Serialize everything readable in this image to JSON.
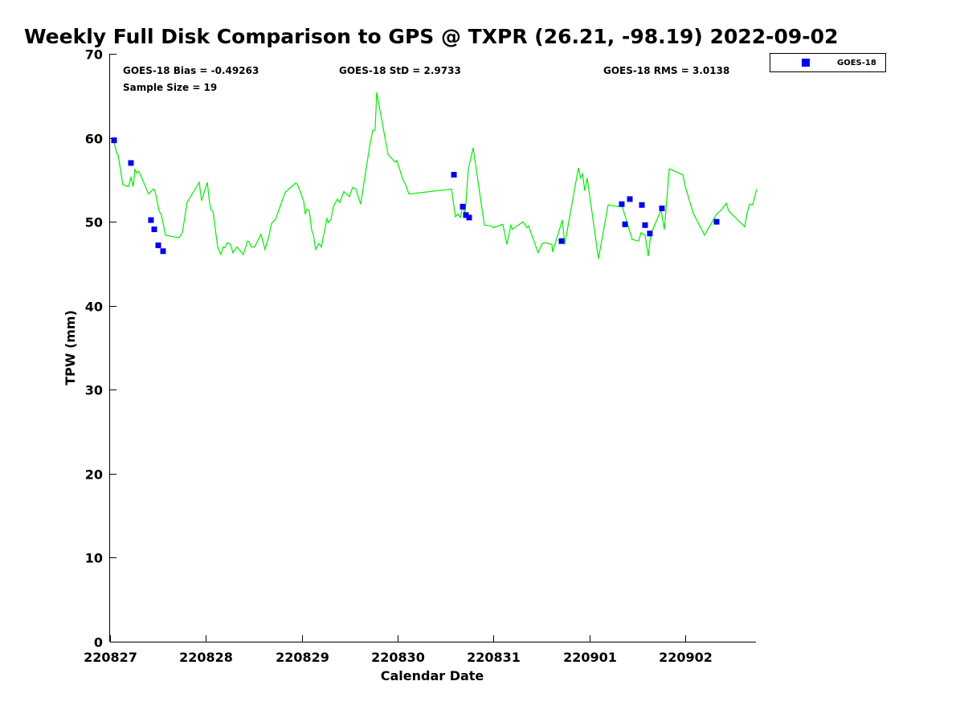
{
  "chart_data": {
    "type": "line",
    "title": "Weekly Full Disk Comparison to GPS @ TXPR (26.21, -98.19) 2022-09-02",
    "xlabel": "Calendar Date",
    "ylabel": "TPW (mm)",
    "xlim": [
      0,
      6.75
    ],
    "ylim": [
      0,
      70
    ],
    "x_unit": "days since 220827",
    "xticks": [
      0,
      1,
      2,
      3,
      4,
      5,
      6
    ],
    "xtick_labels": [
      "220827",
      "220828",
      "220829",
      "220830",
      "220831",
      "220901",
      "220902"
    ],
    "yticks": [
      0,
      10,
      20,
      30,
      40,
      50,
      60,
      70
    ],
    "ytick_labels": [
      "0",
      "10",
      "20",
      "30",
      "40",
      "50",
      "60",
      "70"
    ],
    "grid": false,
    "legend": {
      "placement": "top-right (outside plot)",
      "entries": [
        "GOES-18"
      ]
    },
    "annotations": {
      "bias": "GOES-18 Bias = -0.49263",
      "sample": "Sample Size = 19",
      "std": "GOES-18 StD = 2.9733",
      "rms": "GOES-18 RMS = 3.0138"
    },
    "colors": {
      "gps_line": "#00ee00",
      "goes": "#0000ee"
    },
    "series": [
      {
        "name": "GPS",
        "kind": "line",
        "x": [
          0.042,
          0.067,
          0.084,
          0.134,
          0.193,
          0.218,
          0.243,
          0.26,
          0.277,
          0.302,
          0.402,
          0.453,
          0.469,
          0.511,
          0.536,
          0.578,
          0.721,
          0.754,
          0.804,
          0.93,
          0.955,
          1.014,
          1.039,
          1.056,
          1.073,
          1.123,
          1.156,
          1.182,
          1.198,
          1.223,
          1.257,
          1.282,
          1.324,
          1.391,
          1.433,
          1.45,
          1.475,
          1.508,
          1.575,
          1.617,
          1.651,
          1.684,
          1.726,
          1.827,
          1.936,
          1.953,
          2.02,
          2.036,
          2.053,
          2.078,
          2.103,
          2.12,
          2.145,
          2.179,
          2.204,
          2.263,
          2.279,
          2.305,
          2.33,
          2.372,
          2.397,
          2.439,
          2.497,
          2.531,
          2.564,
          2.615,
          2.648,
          2.707,
          2.74,
          2.765,
          2.782,
          2.9,
          2.975,
          2.992,
          3.059,
          3.084,
          3.118,
          3.562,
          3.603,
          3.629,
          3.654,
          3.679,
          3.704,
          3.738,
          3.788,
          3.905,
          3.981,
          3.997,
          4.098,
          4.14,
          4.182,
          4.198,
          4.307,
          4.349,
          4.366,
          4.466,
          4.508,
          4.542,
          4.609,
          4.617,
          4.718,
          4.743,
          4.886,
          4.911,
          4.928,
          4.953,
          4.978,
          5.095,
          5.196,
          5.305,
          5.33,
          5.447,
          5.514,
          5.539,
          5.581,
          5.615,
          5.64,
          5.707,
          5.749,
          5.782,
          5.833,
          5.975,
          6.0,
          6.084,
          6.201,
          6.327,
          6.369,
          6.428,
          6.453,
          6.62,
          6.645,
          6.671,
          6.704,
          6.746
        ],
        "y": [
          59.6,
          58.2,
          58.0,
          54.4,
          54.2,
          55.3,
          54.2,
          56.3,
          55.8,
          56.0,
          53.3,
          53.9,
          53.7,
          51.3,
          50.8,
          48.4,
          48.1,
          48.7,
          52.3,
          54.7,
          52.5,
          54.7,
          52.2,
          51.4,
          51.3,
          47.0,
          46.1,
          47.0,
          46.9,
          47.5,
          47.3,
          46.3,
          47.0,
          46.1,
          47.7,
          47.6,
          47.0,
          47.0,
          48.5,
          46.7,
          48.0,
          49.8,
          50.3,
          53.5,
          54.6,
          54.5,
          52.5,
          50.9,
          51.5,
          51.3,
          49.0,
          48.5,
          46.7,
          47.4,
          47.0,
          50.4,
          49.9,
          50.3,
          51.8,
          52.7,
          52.3,
          53.6,
          53.0,
          54.1,
          53.9,
          52.1,
          54.6,
          58.9,
          60.9,
          60.9,
          65.4,
          58.0,
          57.1,
          57.3,
          54.9,
          54.4,
          53.3,
          53.9,
          50.6,
          50.9,
          50.5,
          51.8,
          51.0,
          56.3,
          58.8,
          49.6,
          49.5,
          49.3,
          49.7,
          47.3,
          49.6,
          49.1,
          50.0,
          49.3,
          49.5,
          46.3,
          47.4,
          47.5,
          47.3,
          46.4,
          50.2,
          47.3,
          56.4,
          55.2,
          55.7,
          53.7,
          55.2,
          45.6,
          52.0,
          51.8,
          52.3,
          47.9,
          47.7,
          48.7,
          48.4,
          45.9,
          48.5,
          50.3,
          51.4,
          49.1,
          56.3,
          55.6,
          54.2,
          51.0,
          48.4,
          50.9,
          51.3,
          52.2,
          51.3,
          49.4,
          51.0,
          52.1,
          52.0,
          53.9
        ]
      },
      {
        "name": "GOES-18",
        "kind": "scatter",
        "x": [
          0.042,
          0.218,
          0.427,
          0.461,
          0.503,
          0.553,
          3.587,
          3.679,
          3.712,
          3.746,
          4.71,
          5.338,
          5.372,
          5.422,
          5.548,
          5.581,
          5.631,
          5.757,
          6.327
        ],
        "y": [
          59.7,
          57.0,
          50.2,
          49.1,
          47.2,
          46.5,
          55.6,
          51.8,
          50.8,
          50.5,
          47.7,
          52.1,
          49.7,
          52.7,
          52.0,
          49.6,
          48.6,
          51.6,
          50.0
        ]
      }
    ]
  }
}
